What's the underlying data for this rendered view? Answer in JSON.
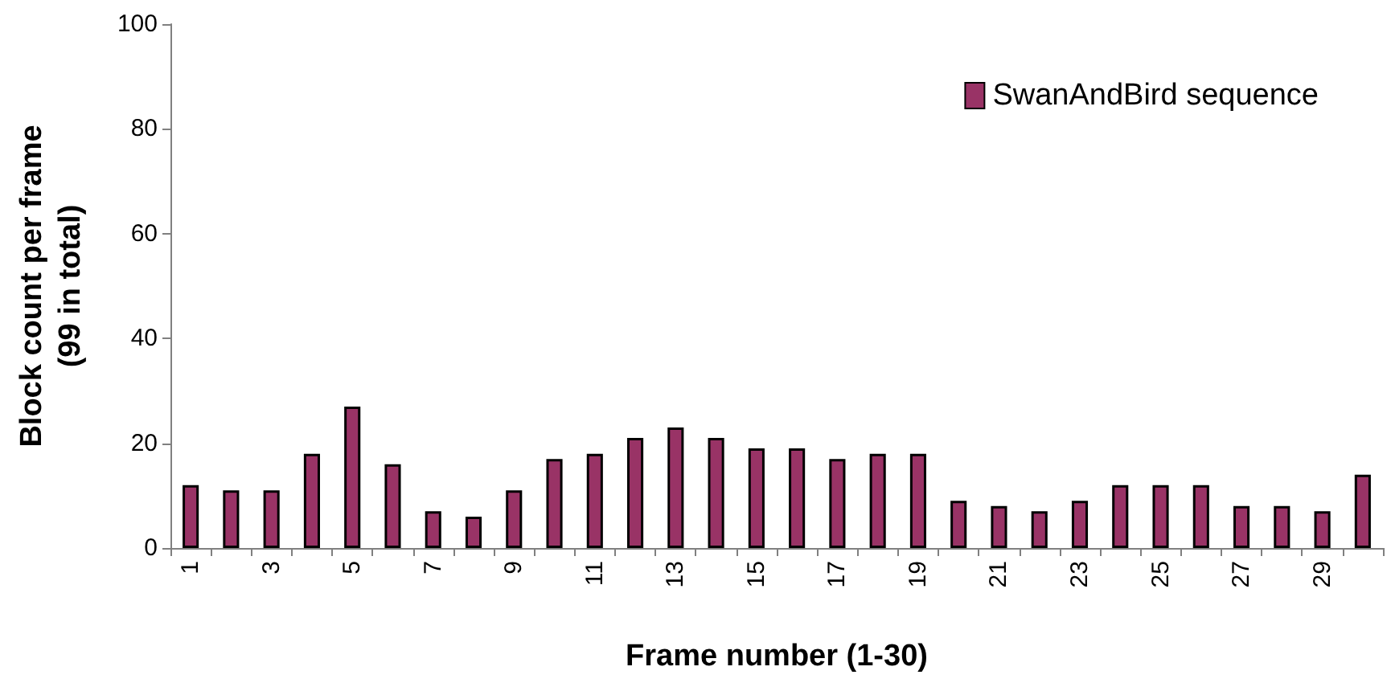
{
  "chart_data": {
    "type": "bar",
    "xlabel": "Frame number (1-30)",
    "ylabel": "Block count per frame\n(99 in total)",
    "categories": [
      "1",
      null,
      "3",
      null,
      "5",
      null,
      "7",
      null,
      "9",
      null,
      "11",
      null,
      "13",
      null,
      "15",
      null,
      "17",
      null,
      "19",
      null,
      "21",
      null,
      "23",
      null,
      "25",
      null,
      "27",
      null,
      "29",
      null
    ],
    "series": [
      {
        "name": "SwanAndBird sequence",
        "color": "#993366",
        "values": [
          12,
          11,
          11,
          18,
          27,
          16,
          7,
          6,
          11,
          17,
          18,
          21,
          23,
          21,
          19,
          19,
          17,
          18,
          18,
          9,
          8,
          7,
          9,
          12,
          12,
          12,
          8,
          8,
          7,
          14
        ]
      }
    ],
    "ylim": [
      0,
      100
    ],
    "yticks": [
      0,
      20,
      40,
      60,
      80,
      100
    ],
    "grid": false,
    "legend": "top right"
  }
}
